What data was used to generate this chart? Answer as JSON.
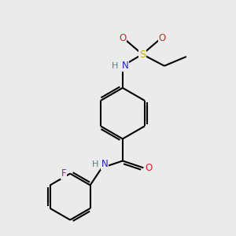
{
  "background_color": "#ebebeb",
  "atom_colors": {
    "C": "#000000",
    "H": "#4a8080",
    "N": "#2020dd",
    "O": "#dd2020",
    "S": "#ccaa00",
    "F": "#cc00cc"
  },
  "bond_color": "#000000",
  "bond_width": 1.5,
  "font_size_atom": 8.5,
  "fig_width": 3.0,
  "fig_height": 3.0,
  "dpi": 100
}
